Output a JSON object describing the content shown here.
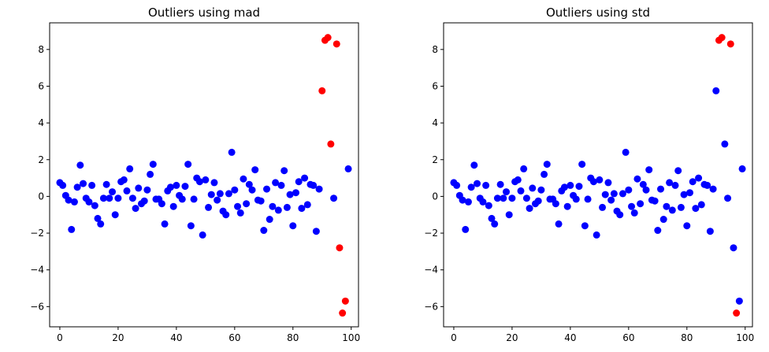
{
  "chart_data": [
    {
      "type": "scatter",
      "title": "Outliers using mad",
      "xlabel": "",
      "ylabel": "",
      "xlim": [
        -3.5,
        102.5
      ],
      "ylim": [
        -7.1,
        9.45
      ],
      "xticks": [
        0,
        20,
        40,
        60,
        80,
        100
      ],
      "yticks": [
        -6,
        -4,
        -2,
        0,
        2,
        4,
        6,
        8
      ],
      "grid": false,
      "colors": {
        "inlier": "#0000ff",
        "outlier": "#ff0000"
      },
      "inliers": {
        "x": [
          0,
          1,
          2,
          3,
          4,
          5,
          6,
          7,
          8,
          9,
          10,
          11,
          12,
          13,
          14,
          15,
          16,
          17,
          18,
          19,
          20,
          21,
          22,
          23,
          24,
          25,
          26,
          27,
          28,
          29,
          30,
          31,
          32,
          33,
          34,
          35,
          36,
          37,
          38,
          39,
          40,
          41,
          42,
          43,
          44,
          45,
          46,
          47,
          48,
          49,
          50,
          51,
          52,
          53,
          54,
          55,
          56,
          57,
          58,
          59,
          60,
          61,
          62,
          63,
          64,
          65,
          66,
          67,
          68,
          69,
          70,
          71,
          72,
          73,
          74,
          75,
          76,
          77,
          78,
          79,
          80,
          81,
          82,
          83,
          84,
          85,
          86,
          87,
          88,
          89,
          94,
          99
        ],
        "y": [
          0.75,
          0.6,
          0.05,
          -0.2,
          -1.8,
          -0.3,
          0.5,
          1.7,
          0.7,
          -0.1,
          -0.3,
          0.6,
          -0.5,
          -1.2,
          -1.5,
          -0.1,
          0.65,
          -0.1,
          0.25,
          -1.0,
          -0.1,
          0.8,
          0.9,
          0.3,
          1.5,
          -0.1,
          -0.65,
          0.45,
          -0.4,
          -0.25,
          0.35,
          1.2,
          1.75,
          -0.15,
          -0.15,
          -0.4,
          -1.5,
          0.3,
          0.5,
          -0.55,
          0.6,
          0.05,
          -0.15,
          0.55,
          1.75,
          -1.6,
          -0.15,
          1.0,
          0.8,
          -2.1,
          0.9,
          -0.6,
          0.1,
          0.75,
          -0.2,
          0.15,
          -0.8,
          -1.0,
          0.15,
          2.4,
          0.35,
          -0.55,
          -0.9,
          0.95,
          -0.4,
          0.65,
          0.35,
          1.45,
          -0.2,
          -0.25,
          -1.85,
          0.4,
          -1.25,
          -0.55,
          0.75,
          -0.75,
          0.6,
          1.4,
          -0.6,
          0.1,
          -1.6,
          0.2,
          0.8,
          -0.65,
          1.0,
          -0.45,
          0.65,
          0.6,
          -1.9,
          0.4,
          -0.1,
          1.5
        ]
      },
      "outliers": {
        "x": [
          90,
          91,
          92,
          93,
          95,
          96,
          97,
          98
        ],
        "y": [
          5.75,
          8.5,
          8.65,
          2.85,
          8.3,
          -2.8,
          -6.35,
          -5.7
        ]
      }
    },
    {
      "type": "scatter",
      "title": "Outliers using std",
      "xlabel": "",
      "ylabel": "",
      "xlim": [
        -3.5,
        102.5
      ],
      "ylim": [
        -7.1,
        9.45
      ],
      "xticks": [
        0,
        20,
        40,
        60,
        80,
        100
      ],
      "yticks": [
        -6,
        -4,
        -2,
        0,
        2,
        4,
        6,
        8
      ],
      "grid": false,
      "colors": {
        "inlier": "#0000ff",
        "outlier": "#ff0000"
      },
      "inliers": {
        "x": [
          0,
          1,
          2,
          3,
          4,
          5,
          6,
          7,
          8,
          9,
          10,
          11,
          12,
          13,
          14,
          15,
          16,
          17,
          18,
          19,
          20,
          21,
          22,
          23,
          24,
          25,
          26,
          27,
          28,
          29,
          30,
          31,
          32,
          33,
          34,
          35,
          36,
          37,
          38,
          39,
          40,
          41,
          42,
          43,
          44,
          45,
          46,
          47,
          48,
          49,
          50,
          51,
          52,
          53,
          54,
          55,
          56,
          57,
          58,
          59,
          60,
          61,
          62,
          63,
          64,
          65,
          66,
          67,
          68,
          69,
          70,
          71,
          72,
          73,
          74,
          75,
          76,
          77,
          78,
          79,
          80,
          81,
          82,
          83,
          84,
          85,
          86,
          87,
          88,
          89,
          90,
          93,
          94,
          96,
          98,
          99
        ],
        "y": [
          0.75,
          0.6,
          0.05,
          -0.2,
          -1.8,
          -0.3,
          0.5,
          1.7,
          0.7,
          -0.1,
          -0.3,
          0.6,
          -0.5,
          -1.2,
          -1.5,
          -0.1,
          0.65,
          -0.1,
          0.25,
          -1.0,
          -0.1,
          0.8,
          0.9,
          0.3,
          1.5,
          -0.1,
          -0.65,
          0.45,
          -0.4,
          -0.25,
          0.35,
          1.2,
          1.75,
          -0.15,
          -0.15,
          -0.4,
          -1.5,
          0.3,
          0.5,
          -0.55,
          0.6,
          0.05,
          -0.15,
          0.55,
          1.75,
          -1.6,
          -0.15,
          1.0,
          0.8,
          -2.1,
          0.9,
          -0.6,
          0.1,
          0.75,
          -0.2,
          0.15,
          -0.8,
          -1.0,
          0.15,
          2.4,
          0.35,
          -0.55,
          -0.9,
          0.95,
          -0.4,
          0.65,
          0.35,
          1.45,
          -0.2,
          -0.25,
          -1.85,
          0.4,
          -1.25,
          -0.55,
          0.75,
          -0.75,
          0.6,
          1.4,
          -0.6,
          0.1,
          -1.6,
          0.2,
          0.8,
          -0.65,
          1.0,
          -0.45,
          0.65,
          0.6,
          -1.9,
          0.4,
          5.75,
          2.85,
          -0.1,
          -2.8,
          -5.7,
          1.5
        ]
      },
      "outliers": {
        "x": [
          91,
          92,
          95,
          97
        ],
        "y": [
          8.5,
          8.65,
          8.3,
          -6.35
        ]
      }
    }
  ]
}
